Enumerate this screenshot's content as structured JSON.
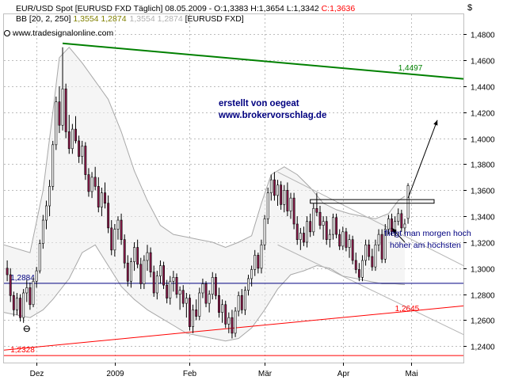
{
  "header": {
    "line1_prefix": "EUR/USD Spot [EURUSD FXD  Täglich] 08.05.2009 - O:1,3383 H:1,3654 L:1,3342 ",
    "line1_close": "C:1,3636",
    "line2_prefix": "BB [20, 2, 250] ",
    "line2_values": "1,3554  1,2874",
    "line2_values_gray": "1,3554  1,2874",
    "line2_suffix": " [EURUSD FXD]",
    "watermark": "www.tradesignalonline.com",
    "currency_symbol": "$"
  },
  "annotations": {
    "author_line1": "erstellt von oegeat",
    "author_line2": "www.brokervorschlag.de",
    "note_line1": "fliegt man morgen hoch",
    "note_line2": "höher am höchsten"
  },
  "chart_data": {
    "type": "candlestick",
    "ylim": [
      1.2274,
      1.4954
    ],
    "y_ticks": [
      {
        "v": 1.48,
        "label": "1,4800"
      },
      {
        "v": 1.46,
        "label": "1,4600"
      },
      {
        "v": 1.44,
        "label": "1,4400"
      },
      {
        "v": 1.42,
        "label": "1,4200"
      },
      {
        "v": 1.4,
        "label": "1,4000"
      },
      {
        "v": 1.38,
        "label": "1,3800"
      },
      {
        "v": 1.36,
        "label": "1,3600"
      },
      {
        "v": 1.34,
        "label": "1,3400"
      },
      {
        "v": 1.32,
        "label": "1,3200"
      },
      {
        "v": 1.3,
        "label": "1,3000"
      },
      {
        "v": 1.28,
        "label": "1,2800"
      },
      {
        "v": 1.26,
        "label": "1,2600"
      },
      {
        "v": 1.24,
        "label": "1,2400"
      }
    ],
    "x_range": [
      0,
      141
    ],
    "x_ticks": [
      {
        "i": 10,
        "label": "Dez"
      },
      {
        "i": 34,
        "label": "2009"
      },
      {
        "i": 57,
        "label": "Feb"
      },
      {
        "i": 80,
        "label": "Mär"
      },
      {
        "i": 104,
        "label": "Apr"
      },
      {
        "i": 125,
        "label": "Mai"
      }
    ],
    "series": [
      {
        "o": 1.3,
        "h": 1.306,
        "l": 1.29,
        "c": 1.295
      },
      {
        "o": 1.295,
        "h": 1.3,
        "l": 1.274,
        "c": 1.279
      },
      {
        "o": 1.279,
        "h": 1.282,
        "l": 1.263,
        "c": 1.268
      },
      {
        "o": 1.268,
        "h": 1.281,
        "l": 1.264,
        "c": 1.277
      },
      {
        "o": 1.277,
        "h": 1.28,
        "l": 1.259,
        "c": 1.262
      },
      {
        "o": 1.262,
        "h": 1.284,
        "l": 1.258,
        "c": 1.281
      },
      {
        "o": 1.281,
        "h": 1.291,
        "l": 1.274,
        "c": 1.285
      },
      {
        "o": 1.285,
        "h": 1.289,
        "l": 1.268,
        "c": 1.272
      },
      {
        "o": 1.272,
        "h": 1.293,
        "l": 1.27,
        "c": 1.29
      },
      {
        "o": 1.29,
        "h": 1.301,
        "l": 1.285,
        "c": 1.298
      },
      {
        "o": 1.298,
        "h": 1.322,
        "l": 1.296,
        "c": 1.319
      },
      {
        "o": 1.319,
        "h": 1.341,
        "l": 1.315,
        "c": 1.337
      },
      {
        "o": 1.337,
        "h": 1.352,
        "l": 1.33,
        "c": 1.348
      },
      {
        "o": 1.348,
        "h": 1.368,
        "l": 1.34,
        "c": 1.363
      },
      {
        "o": 1.363,
        "h": 1.398,
        "l": 1.36,
        "c": 1.395
      },
      {
        "o": 1.395,
        "h": 1.432,
        "l": 1.391,
        "c": 1.428
      },
      {
        "o": 1.428,
        "h": 1.44,
        "l": 1.404,
        "c": 1.41
      },
      {
        "o": 1.41,
        "h": 1.47,
        "l": 1.406,
        "c": 1.438
      },
      {
        "o": 1.438,
        "h": 1.442,
        "l": 1.4,
        "c": 1.405
      },
      {
        "o": 1.405,
        "h": 1.418,
        "l": 1.388,
        "c": 1.392
      },
      {
        "o": 1.392,
        "h": 1.411,
        "l": 1.388,
        "c": 1.407
      },
      {
        "o": 1.407,
        "h": 1.417,
        "l": 1.396,
        "c": 1.398
      },
      {
        "o": 1.398,
        "h": 1.402,
        "l": 1.381,
        "c": 1.386
      },
      {
        "o": 1.386,
        "h": 1.398,
        "l": 1.38,
        "c": 1.394
      },
      {
        "o": 1.394,
        "h": 1.397,
        "l": 1.368,
        "c": 1.372
      },
      {
        "o": 1.372,
        "h": 1.377,
        "l": 1.355,
        "c": 1.359
      },
      {
        "o": 1.359,
        "h": 1.374,
        "l": 1.354,
        "c": 1.37
      },
      {
        "o": 1.37,
        "h": 1.378,
        "l": 1.36,
        "c": 1.363
      },
      {
        "o": 1.363,
        "h": 1.37,
        "l": 1.343,
        "c": 1.347
      },
      {
        "o": 1.347,
        "h": 1.362,
        "l": 1.34,
        "c": 1.358
      },
      {
        "o": 1.358,
        "h": 1.366,
        "l": 1.346,
        "c": 1.35
      },
      {
        "o": 1.35,
        "h": 1.356,
        "l": 1.327,
        "c": 1.331
      },
      {
        "o": 1.331,
        "h": 1.337,
        "l": 1.31,
        "c": 1.314
      },
      {
        "o": 1.314,
        "h": 1.334,
        "l": 1.309,
        "c": 1.33
      },
      {
        "o": 1.33,
        "h": 1.34,
        "l": 1.322,
        "c": 1.337
      },
      {
        "o": 1.337,
        "h": 1.342,
        "l": 1.318,
        "c": 1.322
      },
      {
        "o": 1.322,
        "h": 1.326,
        "l": 1.3,
        "c": 1.304
      },
      {
        "o": 1.304,
        "h": 1.31,
        "l": 1.286,
        "c": 1.29
      },
      {
        "o": 1.29,
        "h": 1.308,
        "l": 1.285,
        "c": 1.305
      },
      {
        "o": 1.305,
        "h": 1.32,
        "l": 1.298,
        "c": 1.316
      },
      {
        "o": 1.316,
        "h": 1.322,
        "l": 1.3,
        "c": 1.303
      },
      {
        "o": 1.303,
        "h": 1.308,
        "l": 1.284,
        "c": 1.288
      },
      {
        "o": 1.288,
        "h": 1.31,
        "l": 1.284,
        "c": 1.306
      },
      {
        "o": 1.306,
        "h": 1.318,
        "l": 1.298,
        "c": 1.312
      },
      {
        "o": 1.312,
        "h": 1.316,
        "l": 1.293,
        "c": 1.297
      },
      {
        "o": 1.297,
        "h": 1.302,
        "l": 1.278,
        "c": 1.281
      },
      {
        "o": 1.281,
        "h": 1.298,
        "l": 1.276,
        "c": 1.294
      },
      {
        "o": 1.294,
        "h": 1.306,
        "l": 1.288,
        "c": 1.302
      },
      {
        "o": 1.302,
        "h": 1.305,
        "l": 1.284,
        "c": 1.287
      },
      {
        "o": 1.287,
        "h": 1.291,
        "l": 1.273,
        "c": 1.277
      },
      {
        "o": 1.277,
        "h": 1.294,
        "l": 1.272,
        "c": 1.29
      },
      {
        "o": 1.29,
        "h": 1.298,
        "l": 1.282,
        "c": 1.293
      },
      {
        "o": 1.293,
        "h": 1.296,
        "l": 1.277,
        "c": 1.28
      },
      {
        "o": 1.28,
        "h": 1.286,
        "l": 1.268,
        "c": 1.283
      },
      {
        "o": 1.283,
        "h": 1.287,
        "l": 1.27,
        "c": 1.273
      },
      {
        "o": 1.273,
        "h": 1.281,
        "l": 1.262,
        "c": 1.277
      },
      {
        "o": 1.277,
        "h": 1.28,
        "l": 1.252,
        "c": 1.255
      },
      {
        "o": 1.255,
        "h": 1.272,
        "l": 1.25,
        "c": 1.268
      },
      {
        "o": 1.268,
        "h": 1.276,
        "l": 1.26,
        "c": 1.263
      },
      {
        "o": 1.263,
        "h": 1.285,
        "l": 1.26,
        "c": 1.281
      },
      {
        "o": 1.281,
        "h": 1.292,
        "l": 1.277,
        "c": 1.288
      },
      {
        "o": 1.288,
        "h": 1.29,
        "l": 1.27,
        "c": 1.273
      },
      {
        "o": 1.273,
        "h": 1.283,
        "l": 1.266,
        "c": 1.28
      },
      {
        "o": 1.28,
        "h": 1.297,
        "l": 1.276,
        "c": 1.293
      },
      {
        "o": 1.293,
        "h": 1.296,
        "l": 1.276,
        "c": 1.279
      },
      {
        "o": 1.279,
        "h": 1.285,
        "l": 1.262,
        "c": 1.266
      },
      {
        "o": 1.266,
        "h": 1.276,
        "l": 1.258,
        "c": 1.272
      },
      {
        "o": 1.272,
        "h": 1.275,
        "l": 1.254,
        "c": 1.257
      },
      {
        "o": 1.257,
        "h": 1.266,
        "l": 1.25,
        "c": 1.262
      },
      {
        "o": 1.262,
        "h": 1.268,
        "l": 1.246,
        "c": 1.25
      },
      {
        "o": 1.25,
        "h": 1.27,
        "l": 1.247,
        "c": 1.267
      },
      {
        "o": 1.267,
        "h": 1.282,
        "l": 1.263,
        "c": 1.279
      },
      {
        "o": 1.279,
        "h": 1.284,
        "l": 1.265,
        "c": 1.268
      },
      {
        "o": 1.268,
        "h": 1.286,
        "l": 1.264,
        "c": 1.283
      },
      {
        "o": 1.283,
        "h": 1.295,
        "l": 1.279,
        "c": 1.292
      },
      {
        "o": 1.292,
        "h": 1.302,
        "l": 1.286,
        "c": 1.299
      },
      {
        "o": 1.299,
        "h": 1.314,
        "l": 1.294,
        "c": 1.31
      },
      {
        "o": 1.31,
        "h": 1.312,
        "l": 1.296,
        "c": 1.3
      },
      {
        "o": 1.3,
        "h": 1.322,
        "l": 1.296,
        "c": 1.318
      },
      {
        "o": 1.318,
        "h": 1.341,
        "l": 1.314,
        "c": 1.338
      },
      {
        "o": 1.338,
        "h": 1.362,
        "l": 1.334,
        "c": 1.358
      },
      {
        "o": 1.358,
        "h": 1.372,
        "l": 1.352,
        "c": 1.368
      },
      {
        "o": 1.368,
        "h": 1.374,
        "l": 1.352,
        "c": 1.356
      },
      {
        "o": 1.356,
        "h": 1.368,
        "l": 1.348,
        "c": 1.364
      },
      {
        "o": 1.364,
        "h": 1.367,
        "l": 1.345,
        "c": 1.349
      },
      {
        "o": 1.349,
        "h": 1.364,
        "l": 1.343,
        "c": 1.36
      },
      {
        "o": 1.36,
        "h": 1.366,
        "l": 1.34,
        "c": 1.344
      },
      {
        "o": 1.344,
        "h": 1.358,
        "l": 1.338,
        "c": 1.354
      },
      {
        "o": 1.354,
        "h": 1.358,
        "l": 1.33,
        "c": 1.334
      },
      {
        "o": 1.334,
        "h": 1.34,
        "l": 1.318,
        "c": 1.322
      },
      {
        "o": 1.322,
        "h": 1.331,
        "l": 1.314,
        "c": 1.327
      },
      {
        "o": 1.327,
        "h": 1.332,
        "l": 1.317,
        "c": 1.32
      },
      {
        "o": 1.32,
        "h": 1.34,
        "l": 1.316,
        "c": 1.336
      },
      {
        "o": 1.336,
        "h": 1.342,
        "l": 1.324,
        "c": 1.328
      },
      {
        "o": 1.328,
        "h": 1.35,
        "l": 1.325,
        "c": 1.346
      },
      {
        "o": 1.346,
        "h": 1.358,
        "l": 1.34,
        "c": 1.343
      },
      {
        "o": 1.343,
        "h": 1.348,
        "l": 1.33,
        "c": 1.333
      },
      {
        "o": 1.333,
        "h": 1.34,
        "l": 1.322,
        "c": 1.336
      },
      {
        "o": 1.336,
        "h": 1.34,
        "l": 1.318,
        "c": 1.322
      },
      {
        "o": 1.322,
        "h": 1.33,
        "l": 1.316,
        "c": 1.326
      },
      {
        "o": 1.326,
        "h": 1.342,
        "l": 1.322,
        "c": 1.339
      },
      {
        "o": 1.339,
        "h": 1.342,
        "l": 1.323,
        "c": 1.326
      },
      {
        "o": 1.326,
        "h": 1.33,
        "l": 1.314,
        "c": 1.317
      },
      {
        "o": 1.317,
        "h": 1.332,
        "l": 1.314,
        "c": 1.328
      },
      {
        "o": 1.328,
        "h": 1.331,
        "l": 1.313,
        "c": 1.316
      },
      {
        "o": 1.316,
        "h": 1.326,
        "l": 1.308,
        "c": 1.322
      },
      {
        "o": 1.322,
        "h": 1.325,
        "l": 1.303,
        "c": 1.306
      },
      {
        "o": 1.306,
        "h": 1.312,
        "l": 1.296,
        "c": 1.299
      },
      {
        "o": 1.299,
        "h": 1.304,
        "l": 1.29,
        "c": 1.293
      },
      {
        "o": 1.293,
        "h": 1.31,
        "l": 1.29,
        "c": 1.306
      },
      {
        "o": 1.306,
        "h": 1.322,
        "l": 1.302,
        "c": 1.318
      },
      {
        "o": 1.318,
        "h": 1.322,
        "l": 1.306,
        "c": 1.309
      },
      {
        "o": 1.309,
        "h": 1.315,
        "l": 1.298,
        "c": 1.301
      },
      {
        "o": 1.301,
        "h": 1.322,
        "l": 1.298,
        "c": 1.318
      },
      {
        "o": 1.318,
        "h": 1.33,
        "l": 1.313,
        "c": 1.326
      },
      {
        "o": 1.326,
        "h": 1.33,
        "l": 1.304,
        "c": 1.307
      },
      {
        "o": 1.307,
        "h": 1.334,
        "l": 1.304,
        "c": 1.33
      },
      {
        "o": 1.33,
        "h": 1.341,
        "l": 1.326,
        "c": 1.338
      },
      {
        "o": 1.338,
        "h": 1.342,
        "l": 1.325,
        "c": 1.328
      },
      {
        "o": 1.328,
        "h": 1.34,
        "l": 1.324,
        "c": 1.336
      },
      {
        "o": 1.336,
        "h": 1.346,
        "l": 1.333,
        "c": 1.342
      },
      {
        "o": 1.342,
        "h": 1.345,
        "l": 1.328,
        "c": 1.331
      },
      {
        "o": 1.331,
        "h": 1.338,
        "l": 1.326,
        "c": 1.334
      },
      {
        "o": 1.3383,
        "h": 1.3654,
        "l": 1.3342,
        "c": 1.3636
      }
    ],
    "bollinger": {
      "upper": [
        [
          0,
          1.318
        ],
        [
          8,
          1.312
        ],
        [
          12,
          1.36
        ],
        [
          15,
          1.42
        ],
        [
          17,
          1.462
        ],
        [
          20,
          1.47
        ],
        [
          24,
          1.458
        ],
        [
          28,
          1.444
        ],
        [
          32,
          1.43
        ],
        [
          36,
          1.405
        ],
        [
          40,
          1.375
        ],
        [
          44,
          1.352
        ],
        [
          48,
          1.333
        ],
        [
          52,
          1.326
        ],
        [
          56,
          1.324
        ],
        [
          60,
          1.322
        ],
        [
          64,
          1.32
        ],
        [
          68,
          1.316
        ],
        [
          72,
          1.32
        ],
        [
          76,
          1.325
        ],
        [
          79,
          1.35
        ],
        [
          82,
          1.372
        ],
        [
          86,
          1.378
        ],
        [
          90,
          1.372
        ],
        [
          94,
          1.362
        ],
        [
          98,
          1.35
        ],
        [
          102,
          1.345
        ],
        [
          106,
          1.342
        ],
        [
          110,
          1.34
        ],
        [
          114,
          1.338
        ],
        [
          118,
          1.342
        ],
        [
          121,
          1.352
        ],
        [
          123,
          1.3554
        ]
      ],
      "lower": [
        [
          0,
          1.266
        ],
        [
          8,
          1.262
        ],
        [
          12,
          1.268
        ],
        [
          15,
          1.276
        ],
        [
          20,
          1.292
        ],
        [
          24,
          1.312
        ],
        [
          28,
          1.318
        ],
        [
          32,
          1.302
        ],
        [
          36,
          1.286
        ],
        [
          40,
          1.276
        ],
        [
          44,
          1.268
        ],
        [
          48,
          1.262
        ],
        [
          52,
          1.256
        ],
        [
          56,
          1.25
        ],
        [
          60,
          1.248
        ],
        [
          64,
          1.246
        ],
        [
          68,
          1.244
        ],
        [
          72,
          1.246
        ],
        [
          76,
          1.254
        ],
        [
          80,
          1.268
        ],
        [
          84,
          1.284
        ],
        [
          88,
          1.295
        ],
        [
          92,
          1.298
        ],
        [
          96,
          1.302
        ],
        [
          100,
          1.3
        ],
        [
          104,
          1.294
        ],
        [
          108,
          1.292
        ],
        [
          112,
          1.29
        ],
        [
          116,
          1.288
        ],
        [
          120,
          1.288
        ],
        [
          123,
          1.2874
        ]
      ]
    },
    "lines": [
      {
        "kind": "resistance",
        "color": "#008000",
        "from": [
          18,
          1.473
        ],
        "to": [
          141,
          1.4457
        ],
        "label": "1,4497",
        "label_at": [
          121,
          1.4497
        ]
      },
      {
        "kind": "support",
        "color": "#000080",
        "from": [
          0,
          1.2884
        ],
        "to": [
          141,
          1.2884
        ],
        "label": "1,2884",
        "label_at": [
          2,
          1.2884
        ]
      },
      {
        "kind": "support",
        "color": "#ff0000",
        "from": [
          0,
          1.237
        ],
        "to": [
          141,
          1.271
        ],
        "label": "1,2645",
        "label_at": [
          120,
          1.2645
        ]
      },
      {
        "kind": "support",
        "color": "#ff0000",
        "from": [
          0,
          1.2328
        ],
        "to": [
          141,
          1.2328
        ],
        "label": "1,2328",
        "label_at": [
          2,
          1.2328
        ]
      }
    ],
    "channel": [
      {
        "from": [
          84,
          1.374
        ],
        "to": [
          141,
          1.302
        ]
      },
      {
        "from": [
          84,
          1.318
        ],
        "to": [
          141,
          1.249
        ]
      }
    ],
    "box": {
      "from": [
        94,
        1.3528
      ],
      "to": [
        132,
        1.35
      ]
    },
    "arrows": [
      {
        "from": [
          124,
          1.354
        ],
        "to": [
          133,
          1.414
        ]
      },
      {
        "from": [
          123,
          1.32
        ],
        "to": [
          119,
          1.331
        ]
      }
    ],
    "marker": {
      "at": [
        7,
        1.2595
      ]
    }
  }
}
